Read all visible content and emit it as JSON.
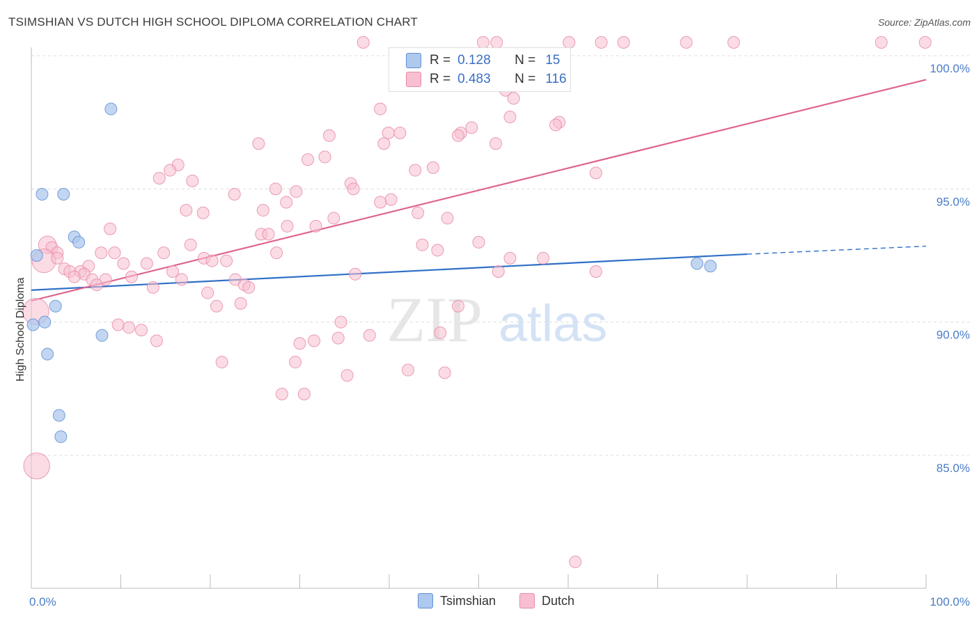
{
  "title": "TSIMSHIAN VS DUTCH HIGH SCHOOL DIPLOMA CORRELATION CHART",
  "source": "Source: ZipAtlas.com",
  "watermark": {
    "zip": "ZIP",
    "atlas": "atlas"
  },
  "colors": {
    "tsimshian_fill": "#aec8ee",
    "tsimshian_stroke": "#5f8fd3",
    "tsimshian_line": "#2f6fc6",
    "dutch_fill": "#f7bfd0",
    "dutch_stroke": "#e88aa8",
    "dutch_line": "#e0648e",
    "tick_text": "#4a7cc7"
  },
  "legend_top": {
    "rows": [
      {
        "r_label": "R =",
        "r_value": "0.128",
        "n_label": "N =",
        "n_value": "15"
      },
      {
        "r_label": "R =",
        "r_value": "0.483",
        "n_label": "N =",
        "n_value": "116"
      }
    ]
  },
  "legend_bottom": [
    {
      "label": "Tsimshian"
    },
    {
      "label": "Dutch"
    }
  ],
  "chart_data": {
    "type": "scatter",
    "title": "TSIMSHIAN VS DUTCH HIGH SCHOOL DIPLOMA CORRELATION CHART",
    "xlabel": "",
    "ylabel": "High School Diploma",
    "xlim": [
      0,
      100
    ],
    "ylim": [
      80.5,
      100.8
    ],
    "x_tick_labels": [
      {
        "value": 0,
        "label": "0.0%"
      },
      {
        "value": 100,
        "label": "100.0%"
      }
    ],
    "y_tick_labels": [
      {
        "value": 85,
        "label": "85.0%"
      },
      {
        "value": 90,
        "label": "90.0%"
      },
      {
        "value": 95,
        "label": "95.0%"
      },
      {
        "value": 100,
        "label": "100.0%"
      }
    ],
    "y_grid_values": [
      85,
      90,
      95,
      100
    ],
    "series": [
      {
        "name": "Tsimshian",
        "r": 0.128,
        "n": 15,
        "trend": {
          "x0": 0,
          "y0": 91.2,
          "x1": 80,
          "y1": 92.55,
          "dash_x1": 100,
          "dash_y1": 92.85
        },
        "points": [
          {
            "x": 8.9,
            "y": 98.0,
            "s": 1
          },
          {
            "x": 1.2,
            "y": 94.8,
            "s": 1
          },
          {
            "x": 3.6,
            "y": 94.8,
            "s": 1
          },
          {
            "x": 4.8,
            "y": 93.2,
            "s": 1
          },
          {
            "x": 5.3,
            "y": 93.0,
            "s": 1
          },
          {
            "x": 0.6,
            "y": 92.5,
            "s": 1
          },
          {
            "x": 2.7,
            "y": 90.6,
            "s": 1
          },
          {
            "x": 0.2,
            "y": 89.9,
            "s": 1
          },
          {
            "x": 1.5,
            "y": 90.0,
            "s": 1
          },
          {
            "x": 7.9,
            "y": 89.5,
            "s": 1
          },
          {
            "x": 1.8,
            "y": 88.8,
            "s": 1
          },
          {
            "x": 3.1,
            "y": 86.5,
            "s": 1
          },
          {
            "x": 3.3,
            "y": 85.7,
            "s": 1
          },
          {
            "x": 74.4,
            "y": 92.2,
            "s": 1
          },
          {
            "x": 75.9,
            "y": 92.1,
            "s": 1
          }
        ]
      },
      {
        "name": "Dutch",
        "r": 0.483,
        "n": 116,
        "trend": {
          "x0": 0,
          "y0": 90.8,
          "x1": 100,
          "y1": 99.1
        },
        "points": [
          {
            "x": 37.1,
            "y": 100.5,
            "s": 1
          },
          {
            "x": 50.5,
            "y": 100.5,
            "s": 1
          },
          {
            "x": 52.0,
            "y": 100.5,
            "s": 1
          },
          {
            "x": 60.1,
            "y": 100.5,
            "s": 1
          },
          {
            "x": 63.7,
            "y": 100.5,
            "s": 1
          },
          {
            "x": 66.2,
            "y": 100.5,
            "s": 1
          },
          {
            "x": 73.2,
            "y": 100.5,
            "s": 1
          },
          {
            "x": 78.5,
            "y": 100.5,
            "s": 1
          },
          {
            "x": 95.0,
            "y": 100.5,
            "s": 1
          },
          {
            "x": 99.9,
            "y": 100.5,
            "s": 1
          },
          {
            "x": 53.0,
            "y": 98.7,
            "s": 1
          },
          {
            "x": 53.9,
            "y": 98.4,
            "s": 1
          },
          {
            "x": 39.0,
            "y": 98.0,
            "s": 1
          },
          {
            "x": 53.5,
            "y": 97.7,
            "s": 1
          },
          {
            "x": 59.0,
            "y": 97.5,
            "s": 1
          },
          {
            "x": 49.2,
            "y": 97.3,
            "s": 1
          },
          {
            "x": 58.6,
            "y": 97.4,
            "s": 1
          },
          {
            "x": 48.0,
            "y": 97.1,
            "s": 1
          },
          {
            "x": 47.7,
            "y": 97.0,
            "s": 1
          },
          {
            "x": 39.9,
            "y": 97.1,
            "s": 1
          },
          {
            "x": 41.2,
            "y": 97.1,
            "s": 1
          },
          {
            "x": 33.3,
            "y": 97.0,
            "s": 1
          },
          {
            "x": 39.4,
            "y": 96.7,
            "s": 1
          },
          {
            "x": 25.4,
            "y": 96.7,
            "s": 1
          },
          {
            "x": 51.9,
            "y": 96.7,
            "s": 1
          },
          {
            "x": 32.8,
            "y": 96.2,
            "s": 1
          },
          {
            "x": 30.9,
            "y": 96.1,
            "s": 1
          },
          {
            "x": 16.4,
            "y": 95.9,
            "s": 1
          },
          {
            "x": 15.5,
            "y": 95.7,
            "s": 1
          },
          {
            "x": 42.9,
            "y": 95.7,
            "s": 1
          },
          {
            "x": 44.9,
            "y": 95.8,
            "s": 1
          },
          {
            "x": 63.1,
            "y": 95.6,
            "s": 1
          },
          {
            "x": 14.3,
            "y": 95.4,
            "s": 1
          },
          {
            "x": 18.0,
            "y": 95.3,
            "s": 1
          },
          {
            "x": 35.7,
            "y": 95.2,
            "s": 1
          },
          {
            "x": 27.3,
            "y": 95.0,
            "s": 1
          },
          {
            "x": 29.6,
            "y": 94.9,
            "s": 1
          },
          {
            "x": 22.7,
            "y": 94.8,
            "s": 1
          },
          {
            "x": 36.0,
            "y": 95.0,
            "s": 1
          },
          {
            "x": 40.2,
            "y": 94.6,
            "s": 1
          },
          {
            "x": 28.5,
            "y": 94.5,
            "s": 1
          },
          {
            "x": 39.0,
            "y": 94.5,
            "s": 1
          },
          {
            "x": 17.3,
            "y": 94.2,
            "s": 1
          },
          {
            "x": 19.2,
            "y": 94.1,
            "s": 1
          },
          {
            "x": 25.9,
            "y": 94.2,
            "s": 1
          },
          {
            "x": 43.2,
            "y": 94.1,
            "s": 1
          },
          {
            "x": 33.8,
            "y": 93.9,
            "s": 1
          },
          {
            "x": 46.5,
            "y": 93.9,
            "s": 1
          },
          {
            "x": 28.6,
            "y": 93.6,
            "s": 1
          },
          {
            "x": 31.8,
            "y": 93.6,
            "s": 1
          },
          {
            "x": 8.8,
            "y": 93.5,
            "s": 1
          },
          {
            "x": 25.7,
            "y": 93.3,
            "s": 1
          },
          {
            "x": 26.5,
            "y": 93.3,
            "s": 1
          },
          {
            "x": 1.8,
            "y": 92.9,
            "s": 1.5
          },
          {
            "x": 2.3,
            "y": 92.8,
            "s": 1
          },
          {
            "x": 17.8,
            "y": 92.9,
            "s": 1
          },
          {
            "x": 50.0,
            "y": 93.0,
            "s": 1
          },
          {
            "x": 43.7,
            "y": 92.9,
            "s": 1
          },
          {
            "x": 2.9,
            "y": 92.6,
            "s": 1
          },
          {
            "x": 7.8,
            "y": 92.6,
            "s": 1
          },
          {
            "x": 9.3,
            "y": 92.6,
            "s": 1
          },
          {
            "x": 14.8,
            "y": 92.6,
            "s": 1
          },
          {
            "x": 27.4,
            "y": 92.6,
            "s": 1
          },
          {
            "x": 19.3,
            "y": 92.4,
            "s": 1
          },
          {
            "x": 20.2,
            "y": 92.3,
            "s": 1
          },
          {
            "x": 21.8,
            "y": 92.3,
            "s": 1
          },
          {
            "x": 45.4,
            "y": 92.7,
            "s": 1
          },
          {
            "x": 53.5,
            "y": 92.4,
            "s": 1
          },
          {
            "x": 57.2,
            "y": 92.4,
            "s": 1
          },
          {
            "x": 1.4,
            "y": 92.3,
            "s": 2
          },
          {
            "x": 2.9,
            "y": 92.4,
            "s": 1
          },
          {
            "x": 10.3,
            "y": 92.2,
            "s": 1
          },
          {
            "x": 12.9,
            "y": 92.2,
            "s": 1
          },
          {
            "x": 6.4,
            "y": 92.1,
            "s": 1
          },
          {
            "x": 3.7,
            "y": 92.0,
            "s": 1
          },
          {
            "x": 4.3,
            "y": 91.9,
            "s": 1
          },
          {
            "x": 5.5,
            "y": 91.9,
            "s": 1
          },
          {
            "x": 5.9,
            "y": 91.8,
            "s": 1
          },
          {
            "x": 15.8,
            "y": 91.9,
            "s": 1
          },
          {
            "x": 4.8,
            "y": 91.7,
            "s": 1
          },
          {
            "x": 11.2,
            "y": 91.7,
            "s": 1
          },
          {
            "x": 36.2,
            "y": 91.8,
            "s": 1
          },
          {
            "x": 52.2,
            "y": 91.9,
            "s": 1
          },
          {
            "x": 63.1,
            "y": 91.9,
            "s": 1
          },
          {
            "x": 6.8,
            "y": 91.6,
            "s": 1
          },
          {
            "x": 8.3,
            "y": 91.6,
            "s": 1
          },
          {
            "x": 16.8,
            "y": 91.6,
            "s": 1
          },
          {
            "x": 22.8,
            "y": 91.6,
            "s": 1
          },
          {
            "x": 7.3,
            "y": 91.4,
            "s": 1
          },
          {
            "x": 23.8,
            "y": 91.4,
            "s": 1
          },
          {
            "x": 24.3,
            "y": 91.3,
            "s": 1
          },
          {
            "x": 13.6,
            "y": 91.3,
            "s": 1
          },
          {
            "x": 19.7,
            "y": 91.1,
            "s": 1
          },
          {
            "x": 23.4,
            "y": 90.7,
            "s": 1
          },
          {
            "x": 20.7,
            "y": 90.6,
            "s": 1
          },
          {
            "x": 47.7,
            "y": 90.6,
            "s": 1
          },
          {
            "x": 0.5,
            "y": 90.4,
            "s": 2.2
          },
          {
            "x": 34.6,
            "y": 90.0,
            "s": 1
          },
          {
            "x": 9.7,
            "y": 89.9,
            "s": 1
          },
          {
            "x": 10.9,
            "y": 89.8,
            "s": 1
          },
          {
            "x": 12.3,
            "y": 89.7,
            "s": 1
          },
          {
            "x": 37.8,
            "y": 89.5,
            "s": 1
          },
          {
            "x": 45.7,
            "y": 89.6,
            "s": 1
          },
          {
            "x": 34.3,
            "y": 89.4,
            "s": 1
          },
          {
            "x": 14.0,
            "y": 89.3,
            "s": 1
          },
          {
            "x": 31.6,
            "y": 89.3,
            "s": 1
          },
          {
            "x": 30.0,
            "y": 89.2,
            "s": 1
          },
          {
            "x": 21.3,
            "y": 88.5,
            "s": 1
          },
          {
            "x": 29.5,
            "y": 88.5,
            "s": 1
          },
          {
            "x": 42.1,
            "y": 88.2,
            "s": 1
          },
          {
            "x": 46.2,
            "y": 88.1,
            "s": 1
          },
          {
            "x": 35.3,
            "y": 88.0,
            "s": 1
          },
          {
            "x": 28.0,
            "y": 87.3,
            "s": 1
          },
          {
            "x": 30.5,
            "y": 87.3,
            "s": 1
          },
          {
            "x": 0.6,
            "y": 84.6,
            "s": 2.2
          },
          {
            "x": 60.8,
            "y": 81.0,
            "s": 1
          }
        ]
      }
    ]
  }
}
